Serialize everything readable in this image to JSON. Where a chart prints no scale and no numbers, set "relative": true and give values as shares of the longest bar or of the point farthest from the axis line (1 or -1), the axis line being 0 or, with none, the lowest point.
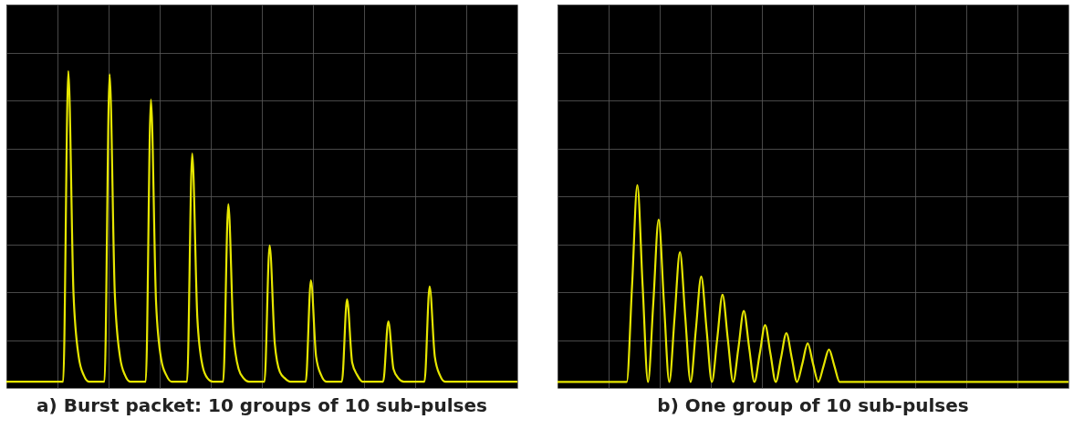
{
  "chart_data": [
    {
      "type": "line",
      "title": "a) Burst packet: 10 groups of 10 sub-pulses",
      "relative": true,
      "grid": true,
      "tick_labels": false,
      "categories": [
        null,
        null,
        null,
        null,
        null,
        null,
        null,
        null,
        null,
        null,
        null,
        null,
        null,
        null,
        null,
        null,
        null,
        null,
        null,
        null,
        null,
        null,
        null,
        null,
        null,
        null,
        null,
        null,
        null,
        null,
        null,
        null,
        null,
        null,
        null,
        null,
        null,
        null,
        null,
        null,
        null,
        null,
        null,
        null,
        null,
        null,
        null,
        null,
        null,
        null,
        null,
        null,
        null,
        null,
        null,
        null,
        null,
        null,
        null,
        null,
        null,
        null,
        null,
        null,
        null,
        null,
        null,
        null,
        null,
        null,
        null,
        null,
        null,
        null,
        null,
        null,
        null,
        null,
        null,
        null,
        null,
        null,
        null,
        null,
        null,
        null,
        null,
        null,
        null,
        null,
        null,
        null,
        null,
        null,
        null,
        null,
        null,
        null,
        null,
        null
      ],
      "series": [
        {
          "color": "#e6e600",
          "values": [
            0.02,
            0.02,
            0.02,
            0.02,
            0.02,
            0.02,
            0.02,
            0.02,
            0.02,
            0.02,
            0.02,
            0.02,
            1,
            0.3,
            0.1,
            0.04,
            0.02,
            0.02,
            0.02,
            0.02,
            0.99,
            0.3,
            0.1,
            0.04,
            0.02,
            0.02,
            0.02,
            0.02,
            0.91,
            0.27,
            0.09,
            0.04,
            0.02,
            0.02,
            0.02,
            0.02,
            0.74,
            0.22,
            0.07,
            0.03,
            0.02,
            0.02,
            0.02,
            0.58,
            0.17,
            0.06,
            0.03,
            0.02,
            0.02,
            0.02,
            0.02,
            0.45,
            0.14,
            0.05,
            0.03,
            0.02,
            0.02,
            0.02,
            0.02,
            0.34,
            0.1,
            0.04,
            0.02,
            0.02,
            0.02,
            0.02,
            0.28,
            0.08,
            0.04,
            0.02,
            0.02,
            0.02,
            0.02,
            0.02,
            0.21,
            0.06,
            0.03,
            0.02,
            0.02,
            0.02,
            0.02,
            0.02,
            0.32,
            0.1,
            0.04,
            0.02,
            0.02,
            0.02,
            0.02,
            0.02,
            0.02,
            0.02,
            0.02,
            0.02,
            0.02,
            0.02,
            0.02,
            0.02,
            0.02,
            0.02
          ]
        }
      ]
    },
    {
      "type": "line",
      "title": "b) One group of 10 sub-pulses",
      "relative": true,
      "grid": true,
      "tick_labels": false,
      "categories": [
        null,
        null,
        null,
        null,
        null,
        null,
        null,
        null,
        null,
        null,
        null,
        null,
        null,
        null,
        null,
        null,
        null,
        null,
        null,
        null,
        null,
        null,
        null,
        null,
        null,
        null,
        null,
        null,
        null,
        null,
        null,
        null,
        null,
        null,
        null,
        null,
        null,
        null,
        null,
        null,
        null,
        null,
        null,
        null,
        null,
        null,
        null,
        null,
        null,
        null,
        null,
        null,
        null,
        null,
        null,
        null,
        null,
        null,
        null,
        null,
        null,
        null,
        null,
        null,
        null,
        null,
        null,
        null,
        null,
        null,
        null,
        null,
        null,
        null,
        null,
        null,
        null,
        null,
        null,
        null,
        null,
        null,
        null,
        null,
        null,
        null,
        null,
        null,
        null,
        null,
        null,
        null,
        null,
        null,
        null,
        null,
        null
      ],
      "series": [
        {
          "color": "#e6e600",
          "values": [
            0.03,
            0.03,
            0.03,
            0.03,
            0.03,
            0.03,
            0.03,
            0.03,
            0.03,
            0.03,
            0.03,
            0.03,
            0.03,
            0.03,
            0.5,
            1,
            0.5,
            0.03,
            0.42,
            0.83,
            0.42,
            0.03,
            0.35,
            0.67,
            0.35,
            0.03,
            0.29,
            0.55,
            0.29,
            0.03,
            0.24,
            0.46,
            0.24,
            0.03,
            0.2,
            0.38,
            0.2,
            0.03,
            0.17,
            0.31,
            0.17,
            0.03,
            0.15,
            0.27,
            0.15,
            0.03,
            0.12,
            0.22,
            0.12,
            0.03,
            0.11,
            0.19,
            0.11,
            0.03,
            0.03,
            0.03,
            0.03,
            0.03,
            0.03,
            0.03,
            0.03,
            0.03,
            0.03,
            0.03,
            0.03,
            0.03,
            0.03,
            0.03,
            0.03,
            0.03,
            0.03,
            0.03,
            0.03,
            0.03,
            0.03,
            0.03,
            0.03,
            0.03,
            0.03,
            0.03,
            0.03,
            0.03,
            0.03,
            0.03,
            0.03,
            0.03,
            0.03,
            0.03,
            0.03,
            0.03,
            0.03,
            0.03,
            0.03,
            0.03,
            0.03,
            0.03,
            0.03
          ]
        }
      ]
    }
  ]
}
